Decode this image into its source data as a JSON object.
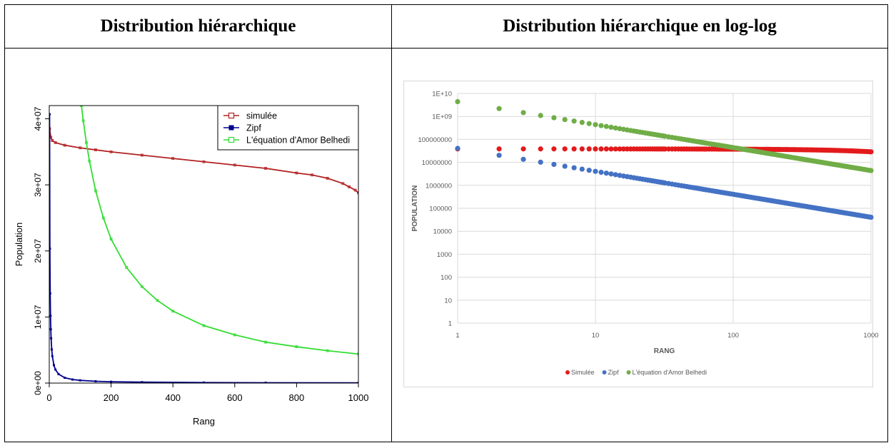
{
  "table": {
    "headers": [
      "Distribution hiérarchique",
      "Distribution hiérarchique en log-log"
    ]
  },
  "chart_data": [
    {
      "type": "line",
      "title": "",
      "xlabel": "Rang",
      "ylabel": "Population",
      "xlim": [
        0,
        1000
      ],
      "ylim": [
        0,
        42000000
      ],
      "x_ticks": [
        0,
        200,
        400,
        600,
        800,
        1000
      ],
      "x_tick_labels": [
        "0",
        "200",
        "400",
        "600",
        "800",
        "1000"
      ],
      "y_ticks": [
        0,
        10000000,
        20000000,
        30000000,
        40000000
      ],
      "y_tick_labels": [
        "0e+00",
        "1e+07",
        "2e+07",
        "3e+07",
        "4e+07"
      ],
      "grid": false,
      "legend_position": "top-right",
      "series": [
        {
          "name": "simulée",
          "color": "#b22222",
          "marker": "open-square",
          "x": [
            1,
            5,
            10,
            20,
            50,
            100,
            150,
            200,
            300,
            400,
            500,
            600,
            700,
            800,
            850,
            900,
            950,
            970,
            990,
            1000
          ],
          "y": [
            38500000,
            37200000,
            36700000,
            36400000,
            36000000,
            35600000,
            35300000,
            35000000,
            34500000,
            34000000,
            33500000,
            33000000,
            32500000,
            31800000,
            31500000,
            31000000,
            30200000,
            29700000,
            29200000,
            28800000
          ]
        },
        {
          "name": "Zipf",
          "color": "#00008b",
          "marker": "filled-square",
          "x": [
            1,
            2,
            3,
            4,
            5,
            6,
            8,
            10,
            15,
            20,
            30,
            50,
            75,
            100,
            150,
            200,
            300,
            500,
            700,
            1000
          ],
          "y": [
            40700000,
            20350000,
            13570000,
            10180000,
            8140000,
            6780000,
            5090000,
            4070000,
            2710000,
            2040000,
            1360000,
            810000,
            540000,
            410000,
            270000,
            200000,
            140000,
            81000,
            58000,
            41000
          ]
        },
        {
          "name": "L'équation d'Amor Belhedi",
          "color": "#33dd33",
          "marker": "open-square",
          "x": [
            104,
            110,
            120,
            130,
            150,
            175,
            200,
            250,
            300,
            350,
            400,
            500,
            600,
            700,
            800,
            900,
            1000
          ],
          "y": [
            42000000,
            39700000,
            36400000,
            33600000,
            29100000,
            25000000,
            21800000,
            17500000,
            14600000,
            12500000,
            10900000,
            8700000,
            7300000,
            6200000,
            5500000,
            4900000,
            4400000
          ]
        }
      ]
    },
    {
      "type": "scatter",
      "title": "",
      "xlabel": "RANG",
      "ylabel": "POPULATION",
      "x_scale": "log",
      "y_scale": "log",
      "xlim": [
        1,
        1000
      ],
      "ylim": [
        1,
        10000000000
      ],
      "x_ticks": [
        1,
        10,
        100,
        1000
      ],
      "x_tick_labels": [
        "1",
        "10",
        "100",
        "1000"
      ],
      "y_ticks": [
        1,
        10,
        100,
        1000,
        10000,
        100000,
        1000000,
        10000000,
        100000000,
        1000000000,
        10000000000
      ],
      "y_tick_labels": [
        "1",
        "10",
        "100",
        "1000",
        "10000",
        "100000",
        "1000000",
        "10000000",
        "100000000",
        "1E+09",
        "1E+10"
      ],
      "grid": true,
      "legend_position": "bottom",
      "series": [
        {
          "name": "Simulée",
          "color": "#e31a1c",
          "x_start": 1,
          "x_end": 1000,
          "x_step": 1,
          "y_start": 38500000,
          "y_end": 28800000,
          "y_law": "linear"
        },
        {
          "name": "Zipf",
          "color": "#4472c4",
          "x_start": 1,
          "x_end": 1000,
          "x_step": 1,
          "y_start": 40700000,
          "y_end": 40700,
          "y_law": "power"
        },
        {
          "name": "L'équation d'Amor Belhedi",
          "color": "#70ad47",
          "x_start": 1,
          "x_end": 1000,
          "x_step": 1,
          "y_start": 4390000000,
          "y_end": 4390000,
          "y_law": "power"
        }
      ]
    }
  ]
}
